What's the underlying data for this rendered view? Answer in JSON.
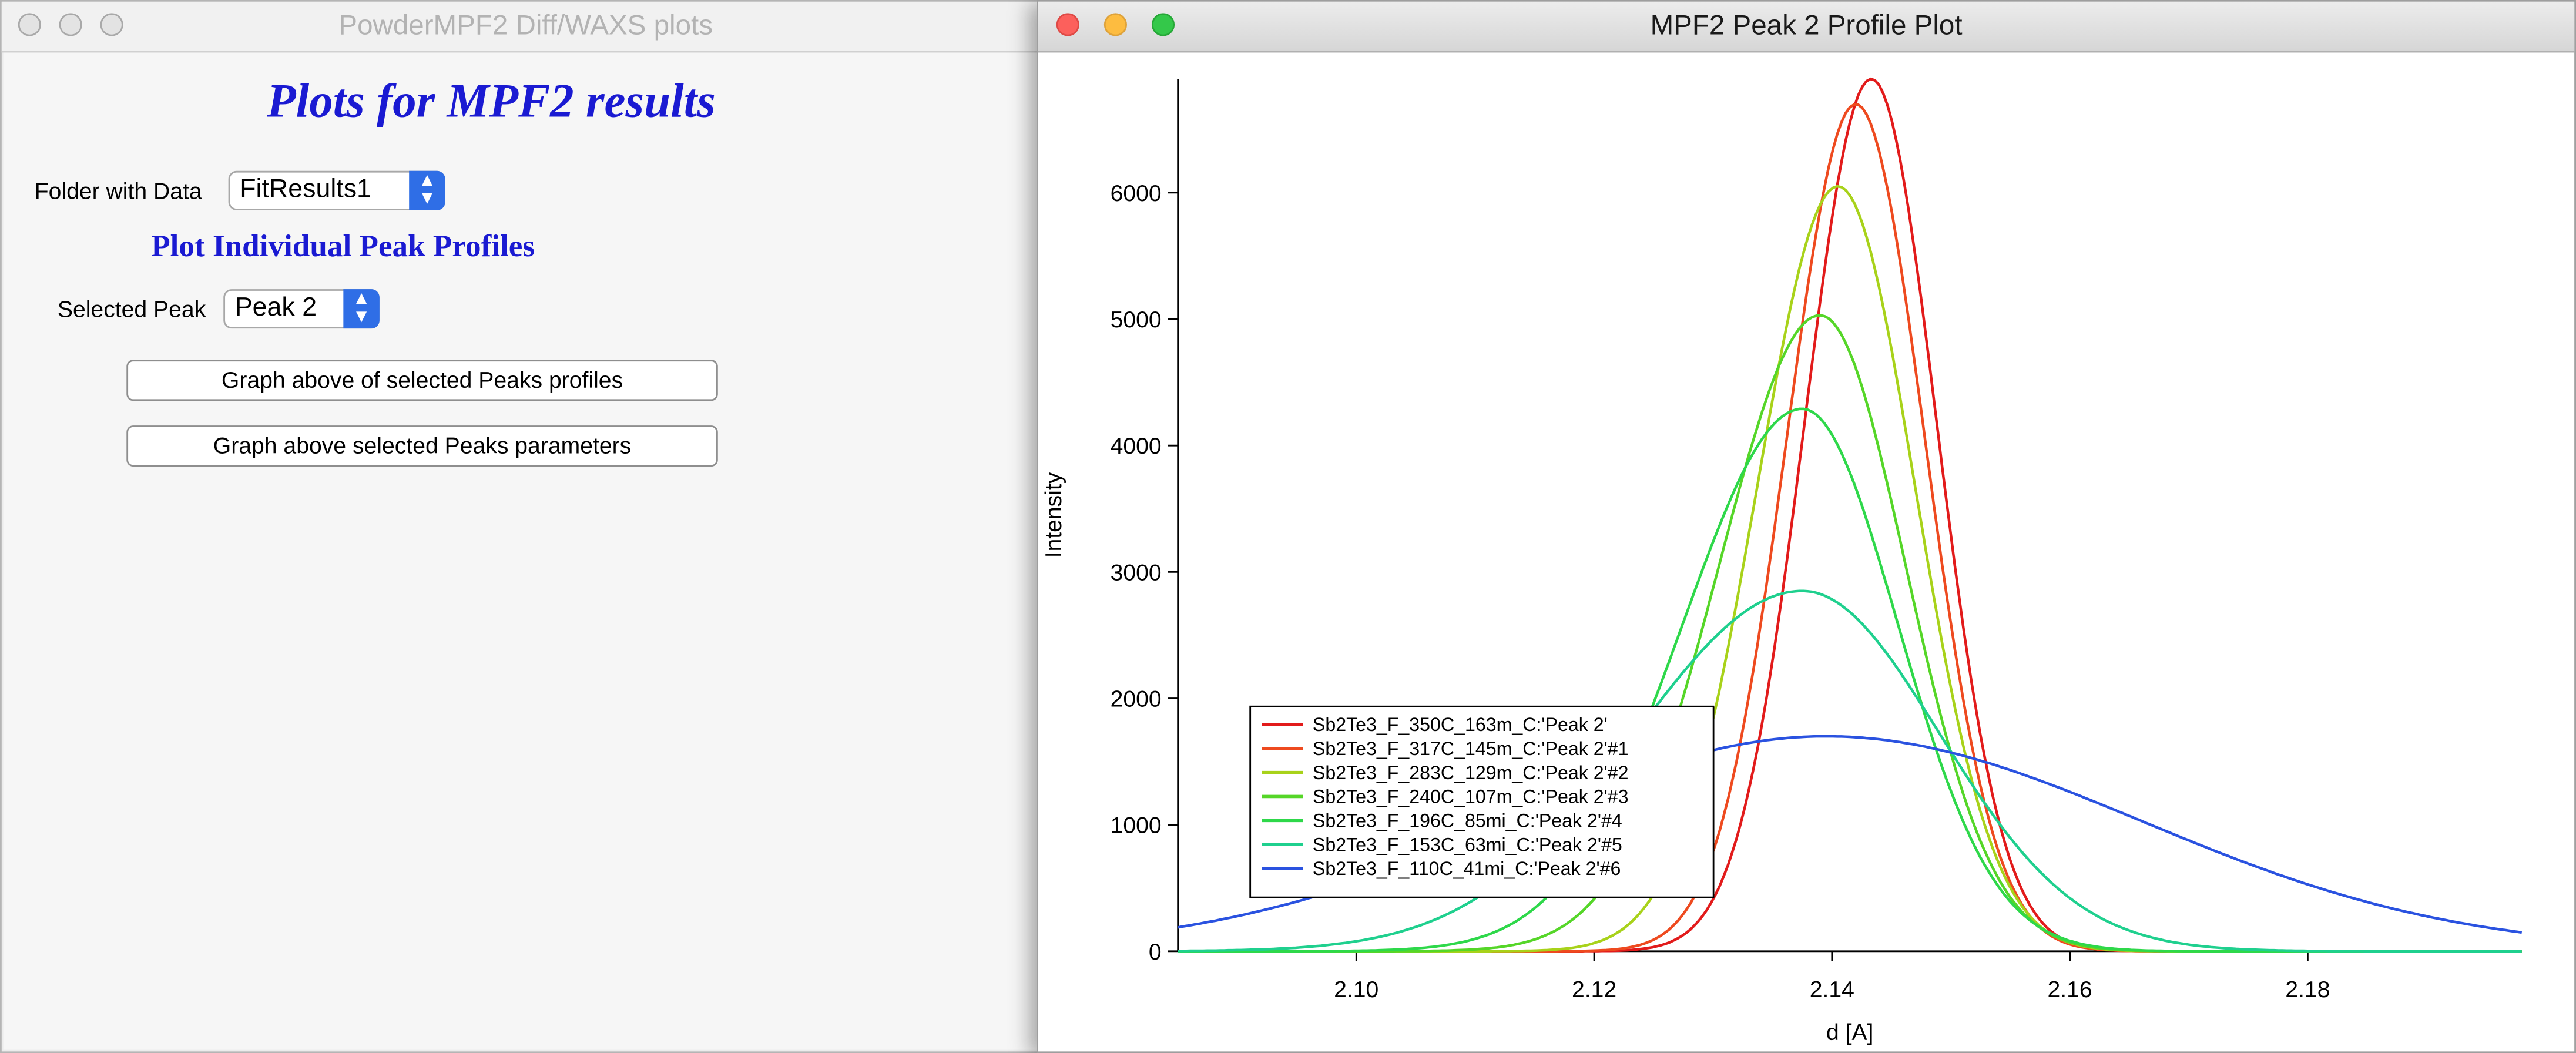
{
  "left_window": {
    "title": "PowderMPF2 Diff/WAXS plots",
    "heading": "Plots for MPF2 results",
    "folder_label": "Folder with Data",
    "folder_value": "FitResults1",
    "subheading": "Plot Individual Peak Profiles",
    "peak_label": "Selected Peak",
    "peak_value": "Peak 2",
    "button_profiles": "Graph above of selected Peaks profiles",
    "button_params": "Graph above selected Peaks parameters"
  },
  "right_window": {
    "title": "MPF2 Peak 2 Profile Plot"
  },
  "chart_data": {
    "type": "line",
    "xlabel": "d [A]",
    "ylabel": "Intensity",
    "xlim": [
      2.085,
      2.198
    ],
    "ylim": [
      0,
      6900
    ],
    "xticks": [
      "2.10",
      "2.12",
      "2.14",
      "2.16",
      "2.18"
    ],
    "yticks": [
      "0",
      "1000",
      "2000",
      "3000",
      "4000",
      "5000",
      "6000"
    ],
    "legend_position": "bottom-left",
    "series": [
      {
        "name": "Sb2Te3_F_350C_163m_C:'Peak 2'",
        "color": "#e21b1b",
        "x0": 2.1433,
        "amp": 6900,
        "w_left": 0.0056,
        "w_right": 0.0055
      },
      {
        "name": "Sb2Te3_F_317C_145m_C:'Peak 2'#1",
        "color": "#ee4a1f",
        "x0": 2.142,
        "amp": 6700,
        "w_left": 0.0058,
        "w_right": 0.0058
      },
      {
        "name": "Sb2Te3_F_283C_129m_C:'Peak 2'#2",
        "color": "#a8d21a",
        "x0": 2.1405,
        "amp": 6050,
        "w_left": 0.0068,
        "w_right": 0.0065
      },
      {
        "name": "Sb2Te3_F_240C_107m_C:'Peak 2'#3",
        "color": "#55d628",
        "x0": 2.139,
        "amp": 5030,
        "w_left": 0.0085,
        "w_right": 0.0072
      },
      {
        "name": "Sb2Te3_F_196C_85mi_C:'Peak 2'#4",
        "color": "#2ed84a",
        "x0": 2.1375,
        "amp": 4290,
        "w_left": 0.01,
        "w_right": 0.008
      },
      {
        "name": "Sb2Te3_F_153C_63mi_C:'Peak 2'#5",
        "color": "#1fd08e",
        "x0": 2.1375,
        "amp": 2850,
        "w_left": 0.014,
        "w_right": 0.0115
      },
      {
        "name": "Sb2Te3_F_110C_41mi_C:'Peak 2'#6",
        "color": "#2a52e0",
        "x0": 2.1395,
        "amp": 1700,
        "w_left": 0.026,
        "w_right": 0.0265
      }
    ]
  }
}
